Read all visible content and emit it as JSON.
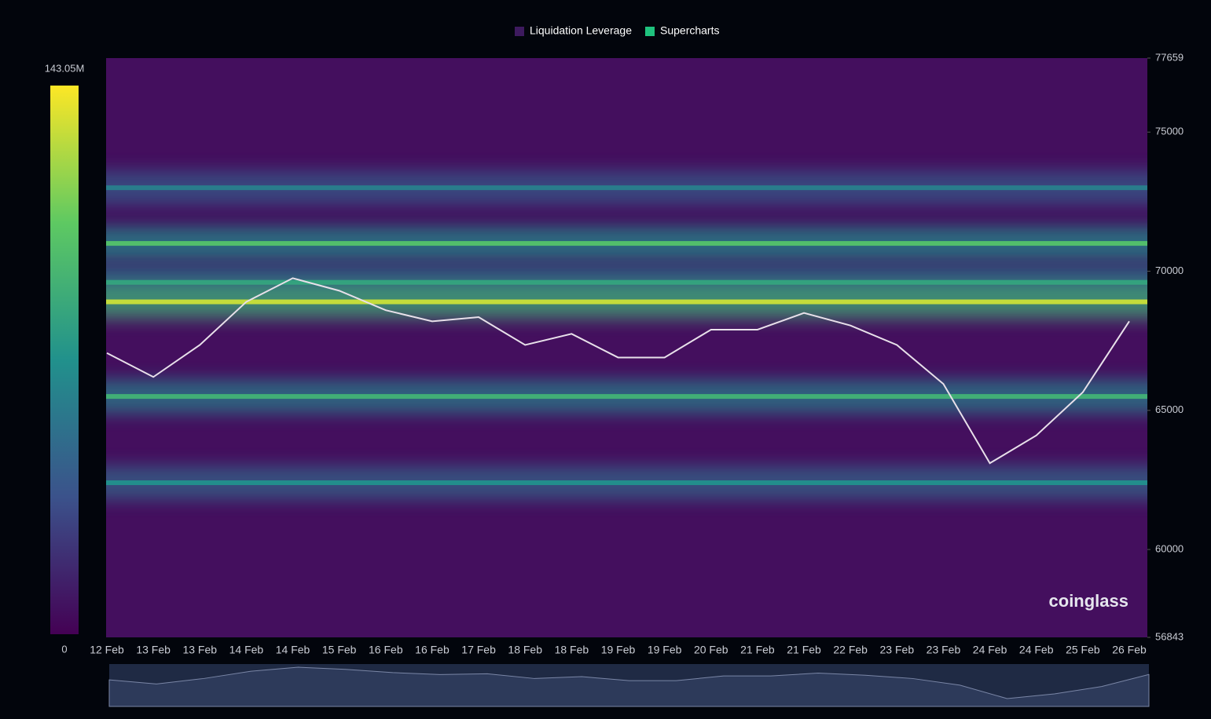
{
  "chart_data": {
    "type": "heatmap",
    "legend": [
      {
        "name": "Liquidation Leverage",
        "color": "#3d1a5e"
      },
      {
        "name": "Supercharts",
        "color": "#1fc27e"
      }
    ],
    "categories": [
      "12 Feb",
      "13 Feb",
      "13 Feb",
      "14 Feb",
      "14 Feb",
      "15 Feb",
      "16 Feb",
      "16 Feb",
      "17 Feb",
      "18 Feb",
      "18 Feb",
      "19 Feb",
      "19 Feb",
      "20 Feb",
      "21 Feb",
      "21 Feb",
      "22 Feb",
      "23 Feb",
      "23 Feb",
      "24 Feb",
      "24 Feb",
      "25 Feb",
      "26 Feb"
    ],
    "series": [
      {
        "name": "Supercharts",
        "color": "#e8e0ea",
        "values": [
          67060,
          66200,
          67350,
          68900,
          69750,
          69300,
          68600,
          68200,
          68350,
          67350,
          67750,
          66900,
          66900,
          67900,
          67900,
          68500,
          68050,
          67350,
          65950,
          63100,
          64100,
          65650,
          68200
        ]
      }
    ],
    "bands": [
      {
        "price": 73000,
        "value": 60
      },
      {
        "price": 71000,
        "value": 100
      },
      {
        "price": 69600,
        "value": 80
      },
      {
        "price": 68900,
        "value": 130
      },
      {
        "price": 65500,
        "value": 90
      },
      {
        "price": 62400,
        "value": 70
      }
    ],
    "ylim": [
      56843,
      77659
    ],
    "yticks": [
      56843,
      60000,
      65000,
      70000,
      75000,
      77659
    ],
    "colorbar": {
      "range": [
        0,
        143.05
      ],
      "ticks": [
        0,
        {
          "value": 143.05,
          "label": "143.05M"
        }
      ]
    },
    "watermark": "coinglass"
  }
}
